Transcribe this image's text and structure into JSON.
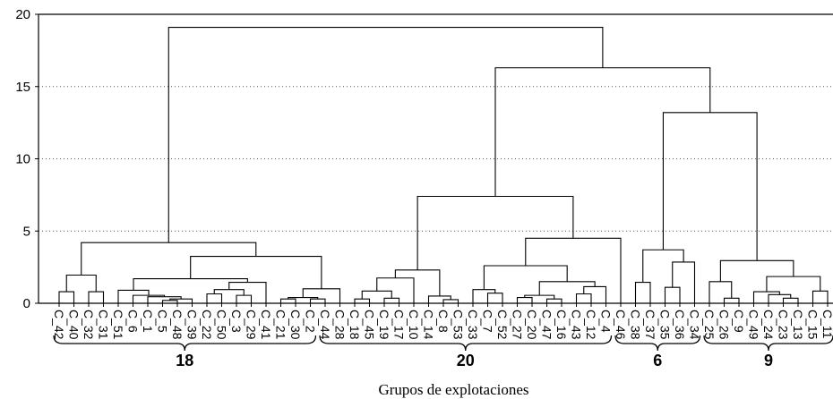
{
  "chart_data": {
    "type": "dendrogram",
    "title": "",
    "xlabel": "Grupos de explotaciones",
    "ylabel": "",
    "ylim": [
      0,
      20
    ],
    "yticks": [
      0,
      5,
      10,
      15,
      20
    ],
    "grid": "horizontal dotted",
    "leaves": [
      "C_42",
      "C_40",
      "C_32",
      "C_31",
      "C_51",
      "C_6",
      "C_1",
      "C_5",
      "C_48",
      "C_39",
      "C_22",
      "C_50",
      "C_3",
      "C_29",
      "C_41",
      "C_21",
      "C_30",
      "C_2",
      "C_44",
      "C_28",
      "C_18",
      "C_45",
      "C_19",
      "C_17",
      "C_10",
      "C_14",
      "C_8",
      "C_53",
      "C_33",
      "C_7",
      "C_52",
      "C_27",
      "C_20",
      "C_47",
      "C_16",
      "C_43",
      "C_12",
      "C_4",
      "C_46",
      "C_38",
      "C_37",
      "C_35",
      "C_36",
      "C_34",
      "C_25",
      "C_26",
      "C_9",
      "C_49",
      "C_24",
      "C_23",
      "C_13",
      "C_15",
      "C_11"
    ],
    "groups": [
      {
        "label": "18",
        "first": "C_42",
        "last": "C_2"
      },
      {
        "label": "20",
        "first": "C_44",
        "last": "C_4"
      },
      {
        "label": "6",
        "first": "C_46",
        "last": "C_34"
      },
      {
        "label": "9",
        "first": "C_25",
        "last": "C_11"
      }
    ],
    "merges": [
      {
        "a": "C_42",
        "b": "C_40",
        "h": 0.8
      },
      {
        "a": "C_32",
        "b": "C_31",
        "h": 0.8
      },
      {
        "a": 0,
        "b": 1,
        "h": 1.95
      },
      {
        "a": "C_5",
        "b": "C_48",
        "h": 0.2
      },
      {
        "a": 3,
        "b": "C_39",
        "h": 0.3
      },
      {
        "a": "C_1",
        "b": 4,
        "h": 0.45
      },
      {
        "a": "C_6",
        "b": 5,
        "h": 0.55
      },
      {
        "a": "C_51",
        "b": 6,
        "h": 0.9
      },
      {
        "a": "C_22",
        "b": "C_50",
        "h": 0.65
      },
      {
        "a": "C_3",
        "b": "C_29",
        "h": 0.55
      },
      {
        "a": 8,
        "b": 9,
        "h": 0.95
      },
      {
        "a": 10,
        "b": "C_41",
        "h": 1.45
      },
      {
        "a": 7,
        "b": 11,
        "h": 1.7
      },
      {
        "a": "C_21",
        "b": "C_30",
        "h": 0.3
      },
      {
        "a": "C_2",
        "b": "C_44",
        "h": 0.3
      },
      {
        "a": 13,
        "b": 14,
        "h": 0.4
      },
      {
        "a": 15,
        "b": "C_28",
        "h": 1.0
      },
      {
        "a": 12,
        "b": 16,
        "h": 3.25
      },
      {
        "a": 2,
        "b": 17,
        "h": 4.2
      },
      {
        "a": "C_18",
        "b": "C_45",
        "h": 0.3
      },
      {
        "a": "C_19",
        "b": "C_17",
        "h": 0.35
      },
      {
        "a": 19,
        "b": 20,
        "h": 0.85
      },
      {
        "a": 21,
        "b": "C_10",
        "h": 1.75
      },
      {
        "a": "C_8",
        "b": "C_53",
        "h": 0.25
      },
      {
        "a": "C_14",
        "b": 23,
        "h": 0.5
      },
      {
        "a": 22,
        "b": 24,
        "h": 2.3
      },
      {
        "a": "C_7",
        "b": "C_52",
        "h": 0.7
      },
      {
        "a": "C_33",
        "b": 26,
        "h": 0.95
      },
      {
        "a": "C_47",
        "b": "C_16",
        "h": 0.3
      },
      {
        "a": "C_27",
        "b": "C_20",
        "h": 0.4
      },
      {
        "a": 29,
        "b": 28,
        "h": 0.55
      },
      {
        "a": "C_43",
        "b": "C_12",
        "h": 0.65
      },
      {
        "a": 31,
        "b": "C_4",
        "h": 1.15
      },
      {
        "a": 30,
        "b": 32,
        "h": 1.5
      },
      {
        "a": 27,
        "b": 33,
        "h": 2.6
      },
      {
        "a": 34,
        "b": "C_46",
        "h": 4.5
      },
      {
        "a": 25,
        "b": 35,
        "h": 7.4
      },
      {
        "a": "C_38",
        "b": "C_37",
        "h": 1.45
      },
      {
        "a": "C_35",
        "b": "C_36",
        "h": 1.1
      },
      {
        "a": 38,
        "b": "C_34",
        "h": 2.85
      },
      {
        "a": 37,
        "b": 39,
        "h": 3.7
      },
      {
        "a": "C_26",
        "b": "C_9",
        "h": 0.35
      },
      {
        "a": "C_25",
        "b": 41,
        "h": 1.5
      },
      {
        "a": "C_23",
        "b": "C_13",
        "h": 0.35
      },
      {
        "a": "C_24",
        "b": 43,
        "h": 0.6
      },
      {
        "a": "C_49",
        "b": 44,
        "h": 0.8
      },
      {
        "a": "C_15",
        "b": "C_11",
        "h": 0.85
      },
      {
        "a": 45,
        "b": 46,
        "h": 1.85
      },
      {
        "a": 42,
        "b": 47,
        "h": 2.95
      },
      {
        "a": 40,
        "b": 48,
        "h": 13.2
      },
      {
        "a": 36,
        "b": 49,
        "h": 16.3
      },
      {
        "a": 18,
        "b": 50,
        "h": 19.1
      }
    ]
  }
}
